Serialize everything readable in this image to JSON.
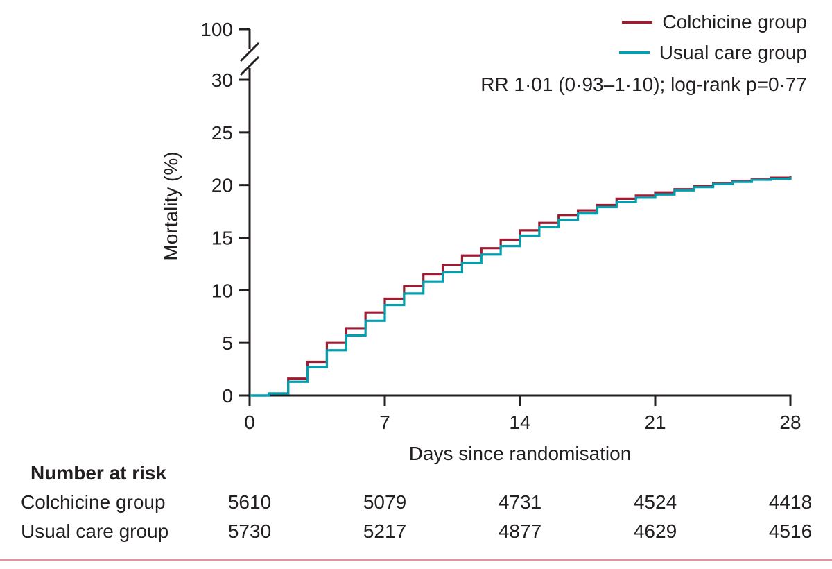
{
  "figure": {
    "bottom_rule_color": "#e8919e",
    "ink_color": "#231f20"
  },
  "chart_data": {
    "type": "line",
    "subtype": "kaplan-meier-step",
    "title": "",
    "xlabel": "Days since randomisation",
    "ylabel": "Mortality (%)",
    "xlim": [
      0,
      28
    ],
    "ylim": [
      0,
      30
    ],
    "x_ticks": [
      0,
      7,
      14,
      21,
      28
    ],
    "y_ticks": [
      0,
      5,
      10,
      15,
      20,
      25,
      30
    ],
    "y_axis_break": {
      "between": [
        30,
        100
      ],
      "top_label": "100"
    },
    "y_break_top_label": "100",
    "annotation": "RR 1·01 (0·93–1·10); log-rank p=0·77",
    "legend_position": "top-right",
    "grid": false,
    "series": [
      {
        "name": "Colchicine group",
        "color": "#9e1b32",
        "x": [
          0,
          1,
          2,
          3,
          4,
          5,
          6,
          7,
          8,
          9,
          10,
          11,
          12,
          13,
          14,
          15,
          16,
          17,
          18,
          19,
          20,
          21,
          22,
          23,
          24,
          25,
          26,
          27,
          28
        ],
        "y": [
          0,
          0.2,
          1.6,
          3.2,
          5.0,
          6.4,
          7.9,
          9.2,
          10.4,
          11.5,
          12.4,
          13.3,
          14.0,
          14.8,
          15.7,
          16.4,
          17.1,
          17.6,
          18.1,
          18.7,
          19.0,
          19.3,
          19.6,
          19.9,
          20.2,
          20.4,
          20.6,
          20.7,
          20.9
        ]
      },
      {
        "name": "Usual care group",
        "color": "#00a0b0",
        "x": [
          0,
          1,
          2,
          3,
          4,
          5,
          6,
          7,
          8,
          9,
          10,
          11,
          12,
          13,
          14,
          15,
          16,
          17,
          18,
          19,
          20,
          21,
          22,
          23,
          24,
          25,
          26,
          27,
          28
        ],
        "y": [
          0,
          0.2,
          1.3,
          2.7,
          4.3,
          5.7,
          7.1,
          8.6,
          9.7,
          10.8,
          11.7,
          12.6,
          13.4,
          14.2,
          15.2,
          16.0,
          16.7,
          17.3,
          17.9,
          18.4,
          18.8,
          19.1,
          19.5,
          19.8,
          20.1,
          20.3,
          20.5,
          20.6,
          20.8
        ]
      }
    ]
  },
  "risk_table": {
    "title": "Number at risk",
    "columns_days": [
      0,
      7,
      14,
      21,
      28
    ],
    "rows": [
      {
        "label": "Colchicine group",
        "values": [
          "5610",
          "5079",
          "4731",
          "4524",
          "4418"
        ]
      },
      {
        "label": "Usual care group",
        "values": [
          "5730",
          "5217",
          "4877",
          "4629",
          "4516"
        ]
      }
    ]
  }
}
